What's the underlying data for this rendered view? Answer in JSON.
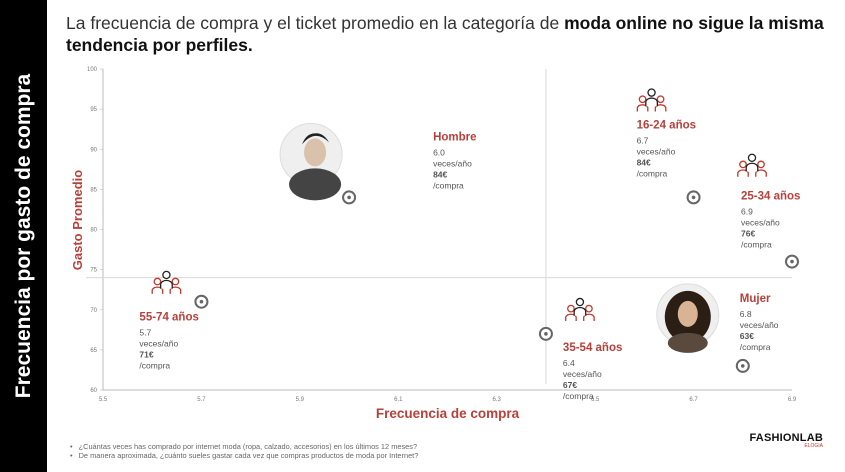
{
  "sidebar": {
    "title": "Frecuencia por gasto de compra"
  },
  "headline": {
    "normal": "La frecuencia de compra y el ticket promedio en la categoría de ",
    "bold": "moda online no sigue la misma tendencia por perfiles."
  },
  "chart_data": {
    "type": "scatter",
    "xlabel": "Frecuencia de compra",
    "ylabel": "Gasto Promedio",
    "xlim": [
      5.5,
      6.9
    ],
    "ylim": [
      60,
      100
    ],
    "x_ticks": [
      "5.5",
      "5.7",
      "5.9",
      "6.1",
      "6.3",
      "6.5",
      "6.7",
      "6.9"
    ],
    "y_ticks": [
      "60",
      "65",
      "70",
      "75",
      "80",
      "85",
      "90",
      "95",
      "100"
    ],
    "quadrant_lines": {
      "x": 6.4,
      "y": 74
    },
    "points": [
      {
        "name": "Hombre",
        "x": 6.0,
        "y": 84,
        "freq": "6.0",
        "freq_unit": "veces/año",
        "spend": "84€",
        "spend_unit": "/compra",
        "icon": "man-photo-icon"
      },
      {
        "name": "16-24 años",
        "x": 6.7,
        "y": 84,
        "freq": "6.7",
        "freq_unit": "veces/año",
        "spend": "84€",
        "spend_unit": "/compra",
        "icon": "group-people-icon"
      },
      {
        "name": "25-34 años",
        "x": 6.9,
        "y": 76,
        "freq": "6.9",
        "freq_unit": "veces/año",
        "spend": "76€",
        "spend_unit": "/compra",
        "icon": "group-people-icon"
      },
      {
        "name": "55-74 años",
        "x": 5.7,
        "y": 71,
        "freq": "5.7",
        "freq_unit": "veces/año",
        "spend": "71€",
        "spend_unit": "/compra",
        "icon": "group-people-icon"
      },
      {
        "name": "35-54 años",
        "x": 6.4,
        "y": 67,
        "freq": "6.4",
        "freq_unit": "veces/año",
        "spend": "67€",
        "spend_unit": "/compra",
        "icon": "group-people-icon"
      },
      {
        "name": "Mujer",
        "x": 6.8,
        "y": 63,
        "freq": "6.8",
        "freq_unit": "veces/año",
        "spend": "63€",
        "spend_unit": "/compra",
        "icon": "woman-photo-icon"
      }
    ]
  },
  "footnotes": [
    "¿Cuántas veces has comprado por internet  moda (ropa, calzado, accesorios)  en los últimos 12 meses?",
    "De manera aproximada, ¿cuánto sueles gastar cada vez que compras productos de moda por Internet?"
  ],
  "logo": {
    "main": "FASHIONLAB",
    "sub": "ELOGIA"
  },
  "colors": {
    "accent": "#b7403a",
    "axis": "#cccccc",
    "text": "#555555"
  }
}
